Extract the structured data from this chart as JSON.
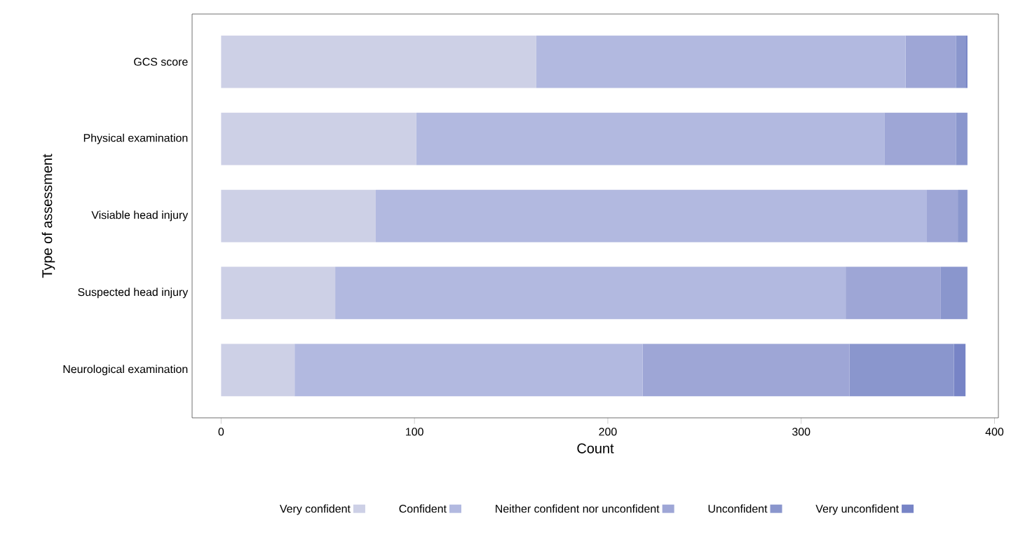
{
  "chart_data": {
    "type": "bar",
    "orientation": "horizontal",
    "stacked": true,
    "xlabel": "Count",
    "ylabel": "Type of assessment",
    "categories": [
      "GCS score",
      "Physical examination",
      "Visiable head injury",
      "Suspected head injury",
      "Neurological examination"
    ],
    "series": [
      {
        "name": "Very confident",
        "color": "#cdd0e6",
        "values": [
          163,
          101,
          80,
          59,
          38
        ]
      },
      {
        "name": "Confident",
        "color": "#b2b9e0",
        "values": [
          191,
          242,
          285,
          264,
          180
        ]
      },
      {
        "name": "Neither confident nor unconfident",
        "color": "#9ea6d6",
        "values": [
          26,
          37,
          16,
          49,
          107
        ]
      },
      {
        "name": "Unconfident",
        "color": "#8a96cd",
        "values": [
          5,
          6,
          5,
          14,
          54
        ]
      },
      {
        "name": "Very unconfident",
        "color": "#7784c6",
        "values": [
          1,
          0,
          0,
          0,
          6
        ]
      }
    ],
    "xlim": [
      -15,
      402
    ],
    "xticks": [
      0,
      100,
      200,
      300,
      400
    ],
    "grid": false,
    "legend": "bottom"
  }
}
